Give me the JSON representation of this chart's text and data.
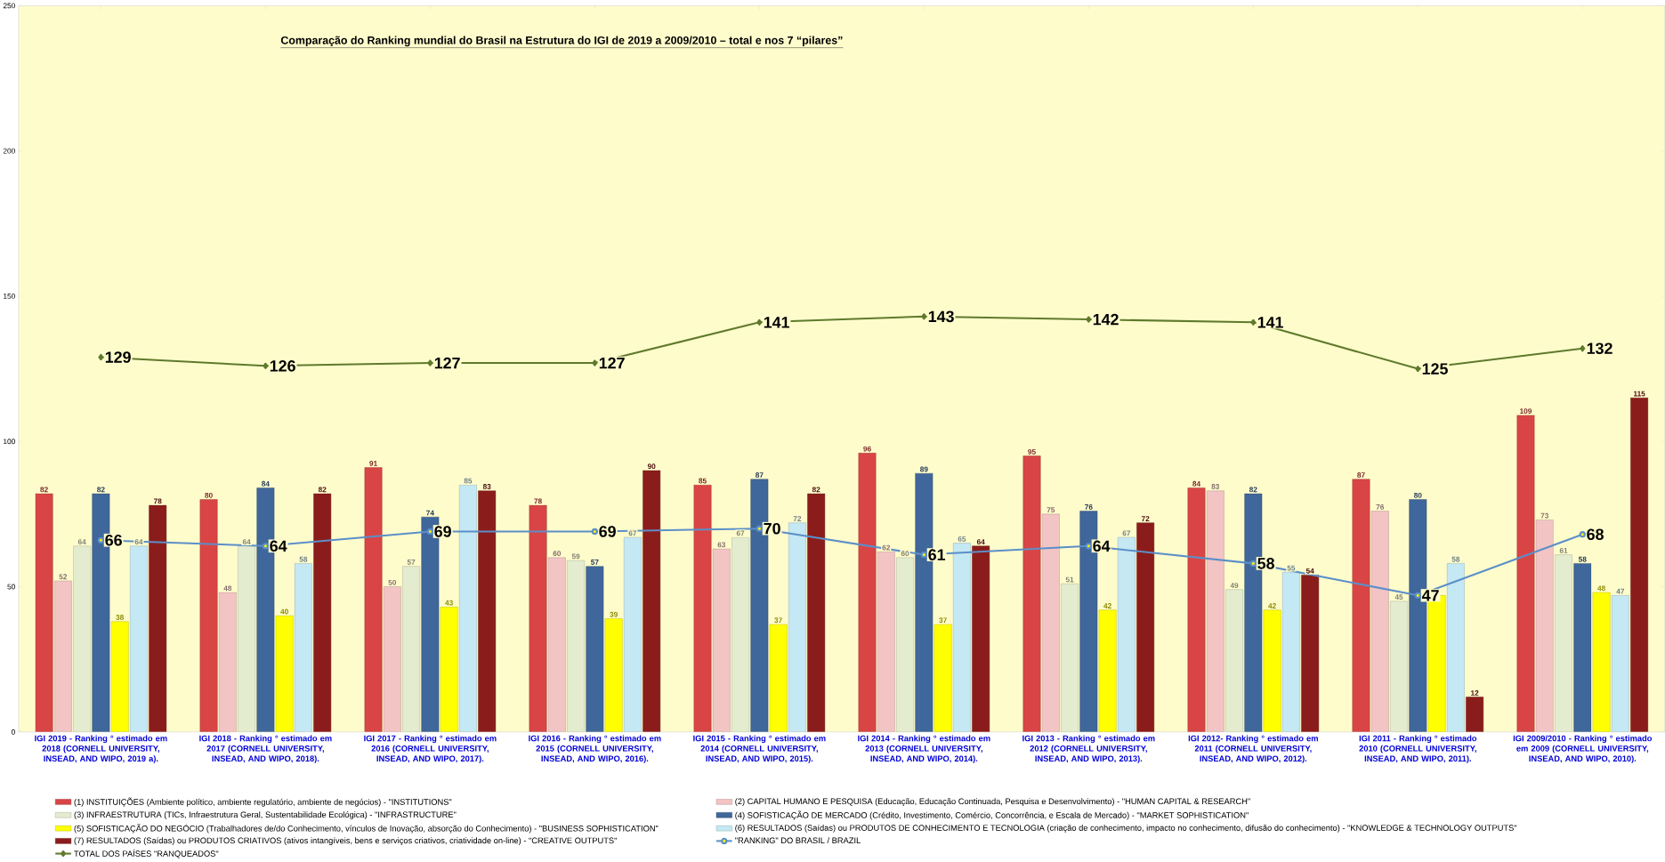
{
  "chart_data": {
    "type": "bar",
    "title": "Comparação do Ranking mundial do Brasil na Estrutura do IGI de 2019 a 2009/2010 – total e nos 7 “pilares”",
    "categories": [
      "IGI 2019  - Ranking ° estimado em 2018 (CORNELL UNIVERSITY, INSEAD, AND WIPO, 2019 a).",
      "IGI 2018  - Ranking ° estimado em 2017 (CORNELL UNIVERSITY, INSEAD, AND WIPO, 2018).",
      "IGI 2017  - Ranking ° estimado em 2016 (CORNELL UNIVERSITY, INSEAD, AND WIPO, 2017).",
      "IGI 2016  - Ranking ° estimado em 2015 (CORNELL UNIVERSITY, INSEAD, AND WIPO, 2016).",
      "IGI 2015 - Ranking ° estimado em 2014 (CORNELL UNIVERSITY, INSEAD, AND WIPO, 2015).",
      "IGI 2014 - Ranking ° estimado  em 2013 (CORNELL UNIVERSITY, INSEAD, AND WIPO, 2014).",
      "IGI 2013 - Ranking ° estimado em 2012 (CORNELL UNIVERSITY, INSEAD, AND WIPO, 2013).",
      "IGI 2012- Ranking ° estimado em 2011 (CORNELL UNIVERSITY, INSEAD, AND WIPO, 2012).",
      "IGI 2011 - Ranking ° estimado  2010 (CORNELL UNIVERSITY, INSEAD, AND WIPO, 2011).",
      "IGI 2009/2010 - Ranking ° estimado em 2009 (CORNELL UNIVERSITY, INSEAD, AND WIPO, 2010)."
    ],
    "series": [
      {
        "name": "(1) INSTITUIÇÕES (Ambiente político, ambiente regulatório, ambiente de negócios) - \"INSTITUTIONS\"",
        "color": "#d94545",
        "values": [
          82,
          80,
          91,
          78,
          85,
          96,
          95,
          84,
          87,
          109
        ]
      },
      {
        "name": "(2) CAPITAL HUMANO E PESQUISA (Educação, Educação Continuada, Pesquisa e Desenvolvimento) - \"HUMAN CAPITAL & RESEARCH\"",
        "color": "#f2c4c4",
        "values": [
          52,
          48,
          50,
          60,
          63,
          62,
          75,
          83,
          76,
          73
        ]
      },
      {
        "name": "(3) INFRAESTRUTURA (TICs, Infraestrutura Geral, Sustentabilidade Ecológica) - \"INFRASTRUCTURE\"",
        "color": "#e3eccf",
        "values": [
          64,
          64,
          57,
          59,
          67,
          60,
          51,
          49,
          45,
          61
        ]
      },
      {
        "name": "(4) SOFISTICAÇÃO DE MERCADO (Crédito, Investimento, Comércio, Concorrência, e Escala de Mercado) - \"MARKET SOPHISTICATION\"",
        "color": "#3f679b",
        "values": [
          82,
          84,
          74,
          57,
          87,
          89,
          76,
          82,
          80,
          58
        ]
      },
      {
        "name": "(5) SOFISTICAÇÃO DO NEGÓCIO (Trabalhadores de/do Conhecimento, vínculos de Inovação, absorção do Conhecimento) - \"BUSINESS SOPHISTICATION\"",
        "color": "#ffff00",
        "values": [
          38,
          40,
          43,
          39,
          37,
          37,
          42,
          42,
          47,
          48
        ],
        "value_labels": [
          "38",
          "40",
          "43",
          "39",
          "37",
          "37",
          "42",
          "42",
          null,
          "48"
        ]
      },
      {
        "name": "(6) RESULTADOS (Saídas) ou PRODUTOS DE CONHECIMENTO E TECNOLOGIA (criação de conhecimento, impacto no conhecimento, difusão do conhecimento) - \"KNOWLEDGE & TECHNOLOGY OUTPUTS\"",
        "color": "#c4e8f4",
        "values": [
          64,
          58,
          85,
          67,
          72,
          65,
          67,
          55,
          58,
          47
        ]
      },
      {
        "name": "(7) RESULTADOS (Saídas) ou PRODUTOS CRIATIVOS (ativos intangíveis, bens e serviços criativos, criatividade on-line) - \"CREATIVE OUTPUTS\"",
        "color": "#8b1c1c",
        "values": [
          78,
          82,
          83,
          90,
          82,
          64,
          72,
          54,
          12,
          115
        ]
      },
      {
        "name": "\"RANKING\" DO BRASIL / BRAZIL",
        "type": "line",
        "marker": "circle",
        "color": "#5b8fc9",
        "values": [
          66,
          64,
          69,
          69,
          70,
          61,
          64,
          58,
          47,
          68
        ]
      },
      {
        "name": "TOTAL DOS PAÍSES \"RANQUEADOS\"",
        "type": "line",
        "marker": "diamond",
        "color": "#5f7a2c",
        "values": [
          129,
          126,
          127,
          127,
          141,
          143,
          142,
          141,
          125,
          132
        ]
      }
    ],
    "ylim": [
      0,
      250
    ],
    "yticks": [
      0,
      50,
      100,
      150,
      200,
      250
    ],
    "data_labels": true,
    "legend": "bottom"
  }
}
